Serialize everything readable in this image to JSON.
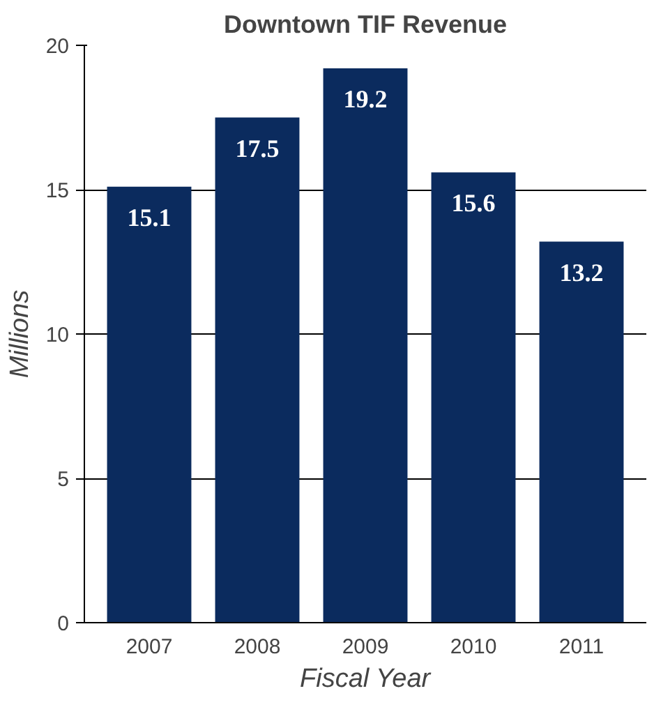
{
  "chart_data": {
    "type": "bar",
    "title": "Downtown TIF Revenue",
    "xlabel": "Fiscal Year",
    "ylabel": "Millions",
    "categories": [
      "2007",
      "2008",
      "2009",
      "2010",
      "2011"
    ],
    "values": [
      15.1,
      17.5,
      19.2,
      15.6,
      13.2
    ],
    "color": "#0b2b5e",
    "ylim": [
      0,
      20
    ],
    "yticks": [
      0,
      5,
      10,
      15,
      20
    ],
    "grid": "y",
    "data_labels": true
  }
}
